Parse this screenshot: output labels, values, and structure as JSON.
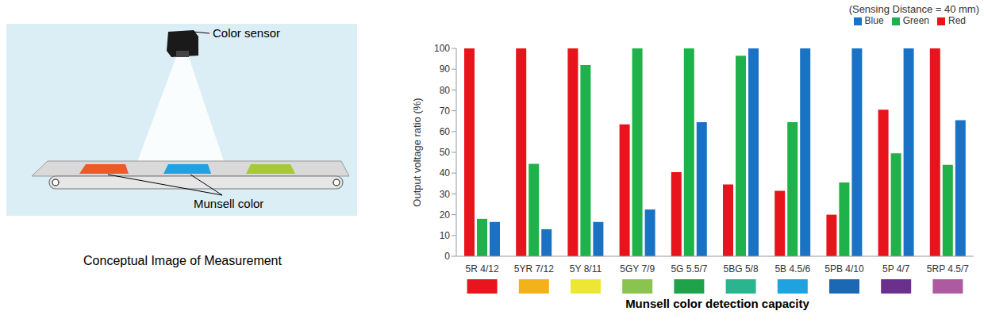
{
  "diagram": {
    "labels": [
      "Color sensor",
      "Munsell color"
    ],
    "caption": "Conceptual Image of Measurement"
  },
  "chart_data": {
    "type": "bar",
    "title": "Munsell color detection capacity",
    "subtitle": "(Sensing Distance = 40 mm)",
    "y_label": "Output voltage ratio (%)",
    "categories": [
      "5R 4/12",
      "5YR 7/12",
      "5Y 8/11",
      "5GY 7/9",
      "5G 5.5/7",
      "5BG 5/8",
      "5B 4.5/6",
      "5PB 4/10",
      "5P 4/7",
      "5RP 4.5/7"
    ],
    "series": [
      {
        "name": "Red",
        "color": "#e8141c",
        "values": [
          100,
          100,
          100,
          63.5,
          40.5,
          34.5,
          31.5,
          20,
          70.5,
          100
        ]
      },
      {
        "name": "Green",
        "color": "#1fb14a",
        "values": [
          18,
          44.5,
          92,
          100,
          100,
          96.5,
          64.5,
          35.5,
          49.5,
          44
        ]
      },
      {
        "name": "Blue",
        "color": "#1a72c4",
        "values": [
          16.5,
          13,
          16.5,
          22.5,
          64.5,
          100,
          100,
          100,
          100,
          65.5
        ]
      }
    ],
    "ylim": [
      0,
      100
    ],
    "yticks": [
      0,
      10,
      20,
      30,
      40,
      50,
      60,
      70,
      80,
      90,
      100
    ],
    "grid": false,
    "legend": "top-right"
  }
}
